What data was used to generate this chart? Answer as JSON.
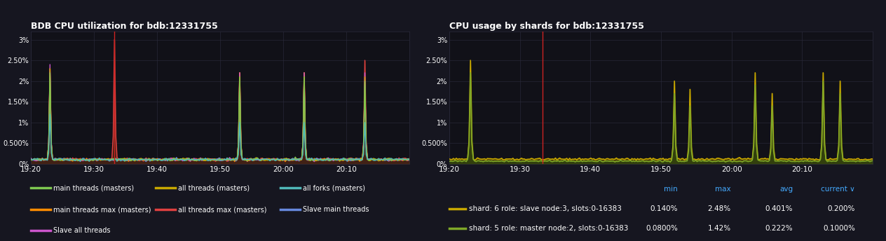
{
  "bg_color": "#161620",
  "plot_bg": "#111118",
  "text_color": "#ffffff",
  "grid_color": "#2a2a3a",
  "title1": "BDB CPU utilization for bdb:12331755",
  "title2": "CPU usage by shards for bdb:12331755",
  "x_ticks": [
    "19:20",
    "19:30",
    "19:40",
    "19:50",
    "20:00",
    "20:10"
  ],
  "ytick_labels": [
    "0%",
    "0.500%",
    "1%",
    "1.50%",
    "2%",
    "2.50%",
    "3%"
  ],
  "ytick_vals": [
    0,
    0.005,
    0.01,
    0.015,
    0.02,
    0.025,
    0.03
  ],
  "ylim": [
    0,
    0.032
  ],
  "legend1": [
    {
      "label": "main threads (masters)",
      "color": "#7ec850"
    },
    {
      "label": "all threads (masters)",
      "color": "#c8a800"
    },
    {
      "label": "all forks (masters)",
      "color": "#50b8b8"
    },
    {
      "label": "main threads max (masters)",
      "color": "#ff8c00"
    },
    {
      "label": "all threads max (masters)",
      "color": "#e04040"
    },
    {
      "label": "Slave main threads",
      "color": "#6688dd"
    },
    {
      "label": "Slave all threads",
      "color": "#cc55cc"
    }
  ],
  "legend2": [
    {
      "label": "shard: 6 role: slave node:3, slots:0-16383",
      "color": "#c8a800",
      "min": "0.140%",
      "max": "2.48%",
      "avg": "0.401%",
      "current": "0.200%"
    },
    {
      "label": "shard: 5 role: master node:2, slots:0-16383",
      "color": "#80a828",
      "min": "0.0800%",
      "max": "1.42%",
      "avg": "0.222%",
      "current": "0.1000%"
    }
  ],
  "header_color": "#44aaff",
  "headers": [
    "min",
    "max",
    "avg",
    "current ∨"
  ]
}
